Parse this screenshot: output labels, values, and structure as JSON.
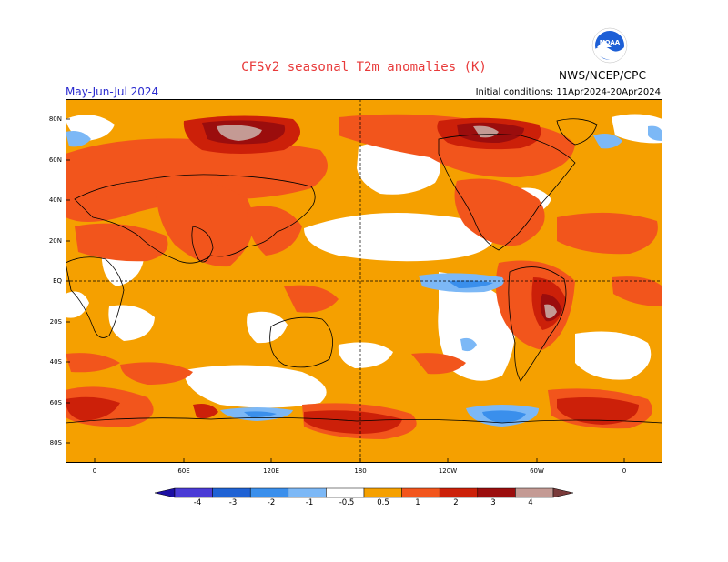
{
  "title": "CFSv2  seasonal  T2m  anomalies  (K)",
  "season": "May-Jun-Jul 2024",
  "initial_conditions": "Initial conditions: 11Apr2024-20Apr2024",
  "agency": "NWS/NCEP/CPC",
  "logo_text": "NOAA",
  "lat_labels": [
    "80N",
    "60N",
    "40N",
    "20N",
    "EQ",
    "20S",
    "40S",
    "60S",
    "80S"
  ],
  "lon_labels": [
    "0",
    "60E",
    "120E",
    "180",
    "120W",
    "60W",
    "0"
  ],
  "legend": {
    "labels": [
      "-4",
      "-3",
      "-2",
      "-1",
      "-0.5",
      "0.5",
      "1",
      "2",
      "3",
      "4"
    ],
    "colors": [
      "#1c0fa3",
      "#4a3bd6",
      "#1f62d4",
      "#3a8fec",
      "#7cb8f6",
      "#ffffff",
      "#f5a000",
      "#f2551c",
      "#cc2009",
      "#9b0d0d",
      "#c49a94",
      "#7a3a3a"
    ]
  },
  "colors": {
    "title": "#e83a3a",
    "season": "#2a2acf",
    "ocean_base": "#f5a000"
  }
}
